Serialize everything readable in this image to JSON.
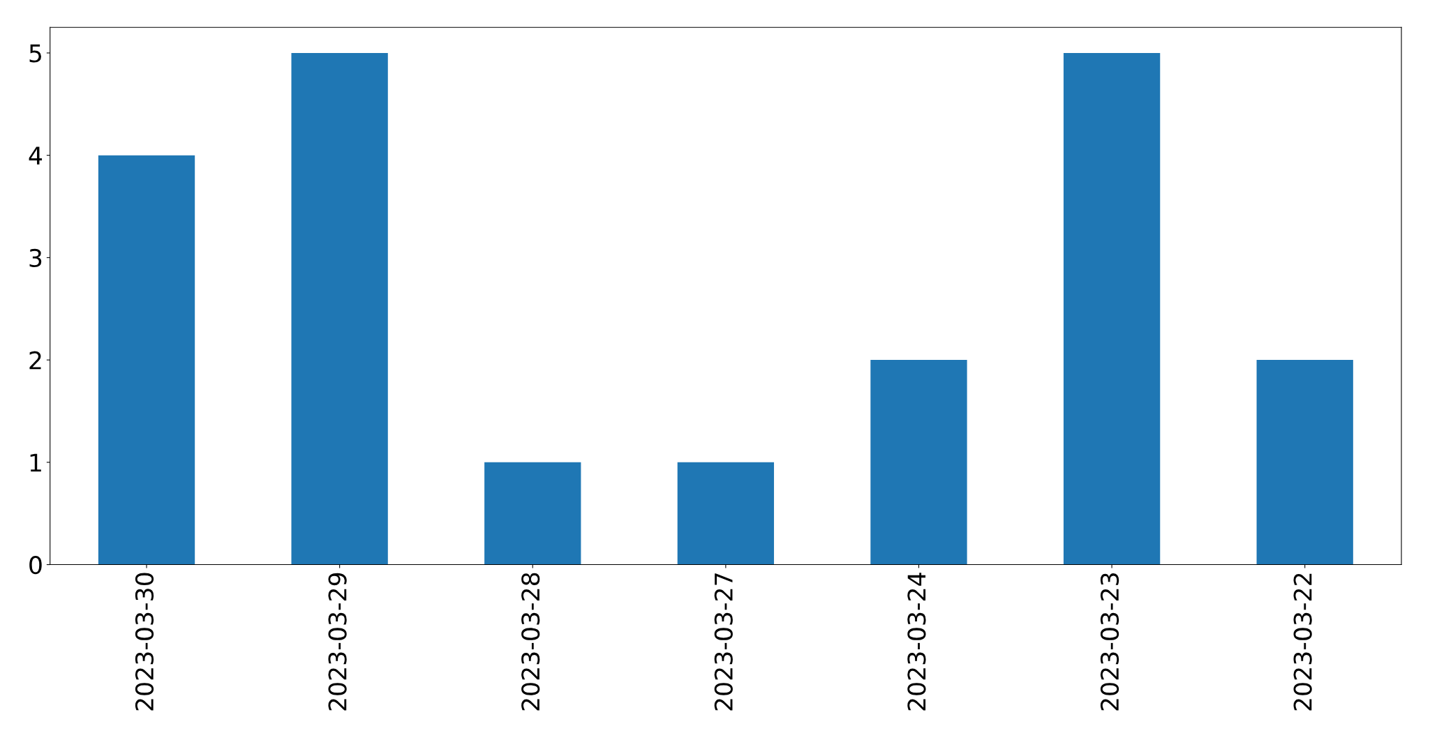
{
  "chart_data": {
    "type": "bar",
    "categories": [
      "2023-03-30",
      "2023-03-29",
      "2023-03-28",
      "2023-03-27",
      "2023-03-24",
      "2023-03-23",
      "2023-03-22"
    ],
    "values": [
      4,
      5,
      1,
      1,
      2,
      5,
      2
    ],
    "color": "#1f77b4",
    "ylim": [
      0,
      5.25
    ],
    "yticks": [
      0,
      1,
      2,
      3,
      4,
      5
    ],
    "grid": false,
    "legend": false
  }
}
